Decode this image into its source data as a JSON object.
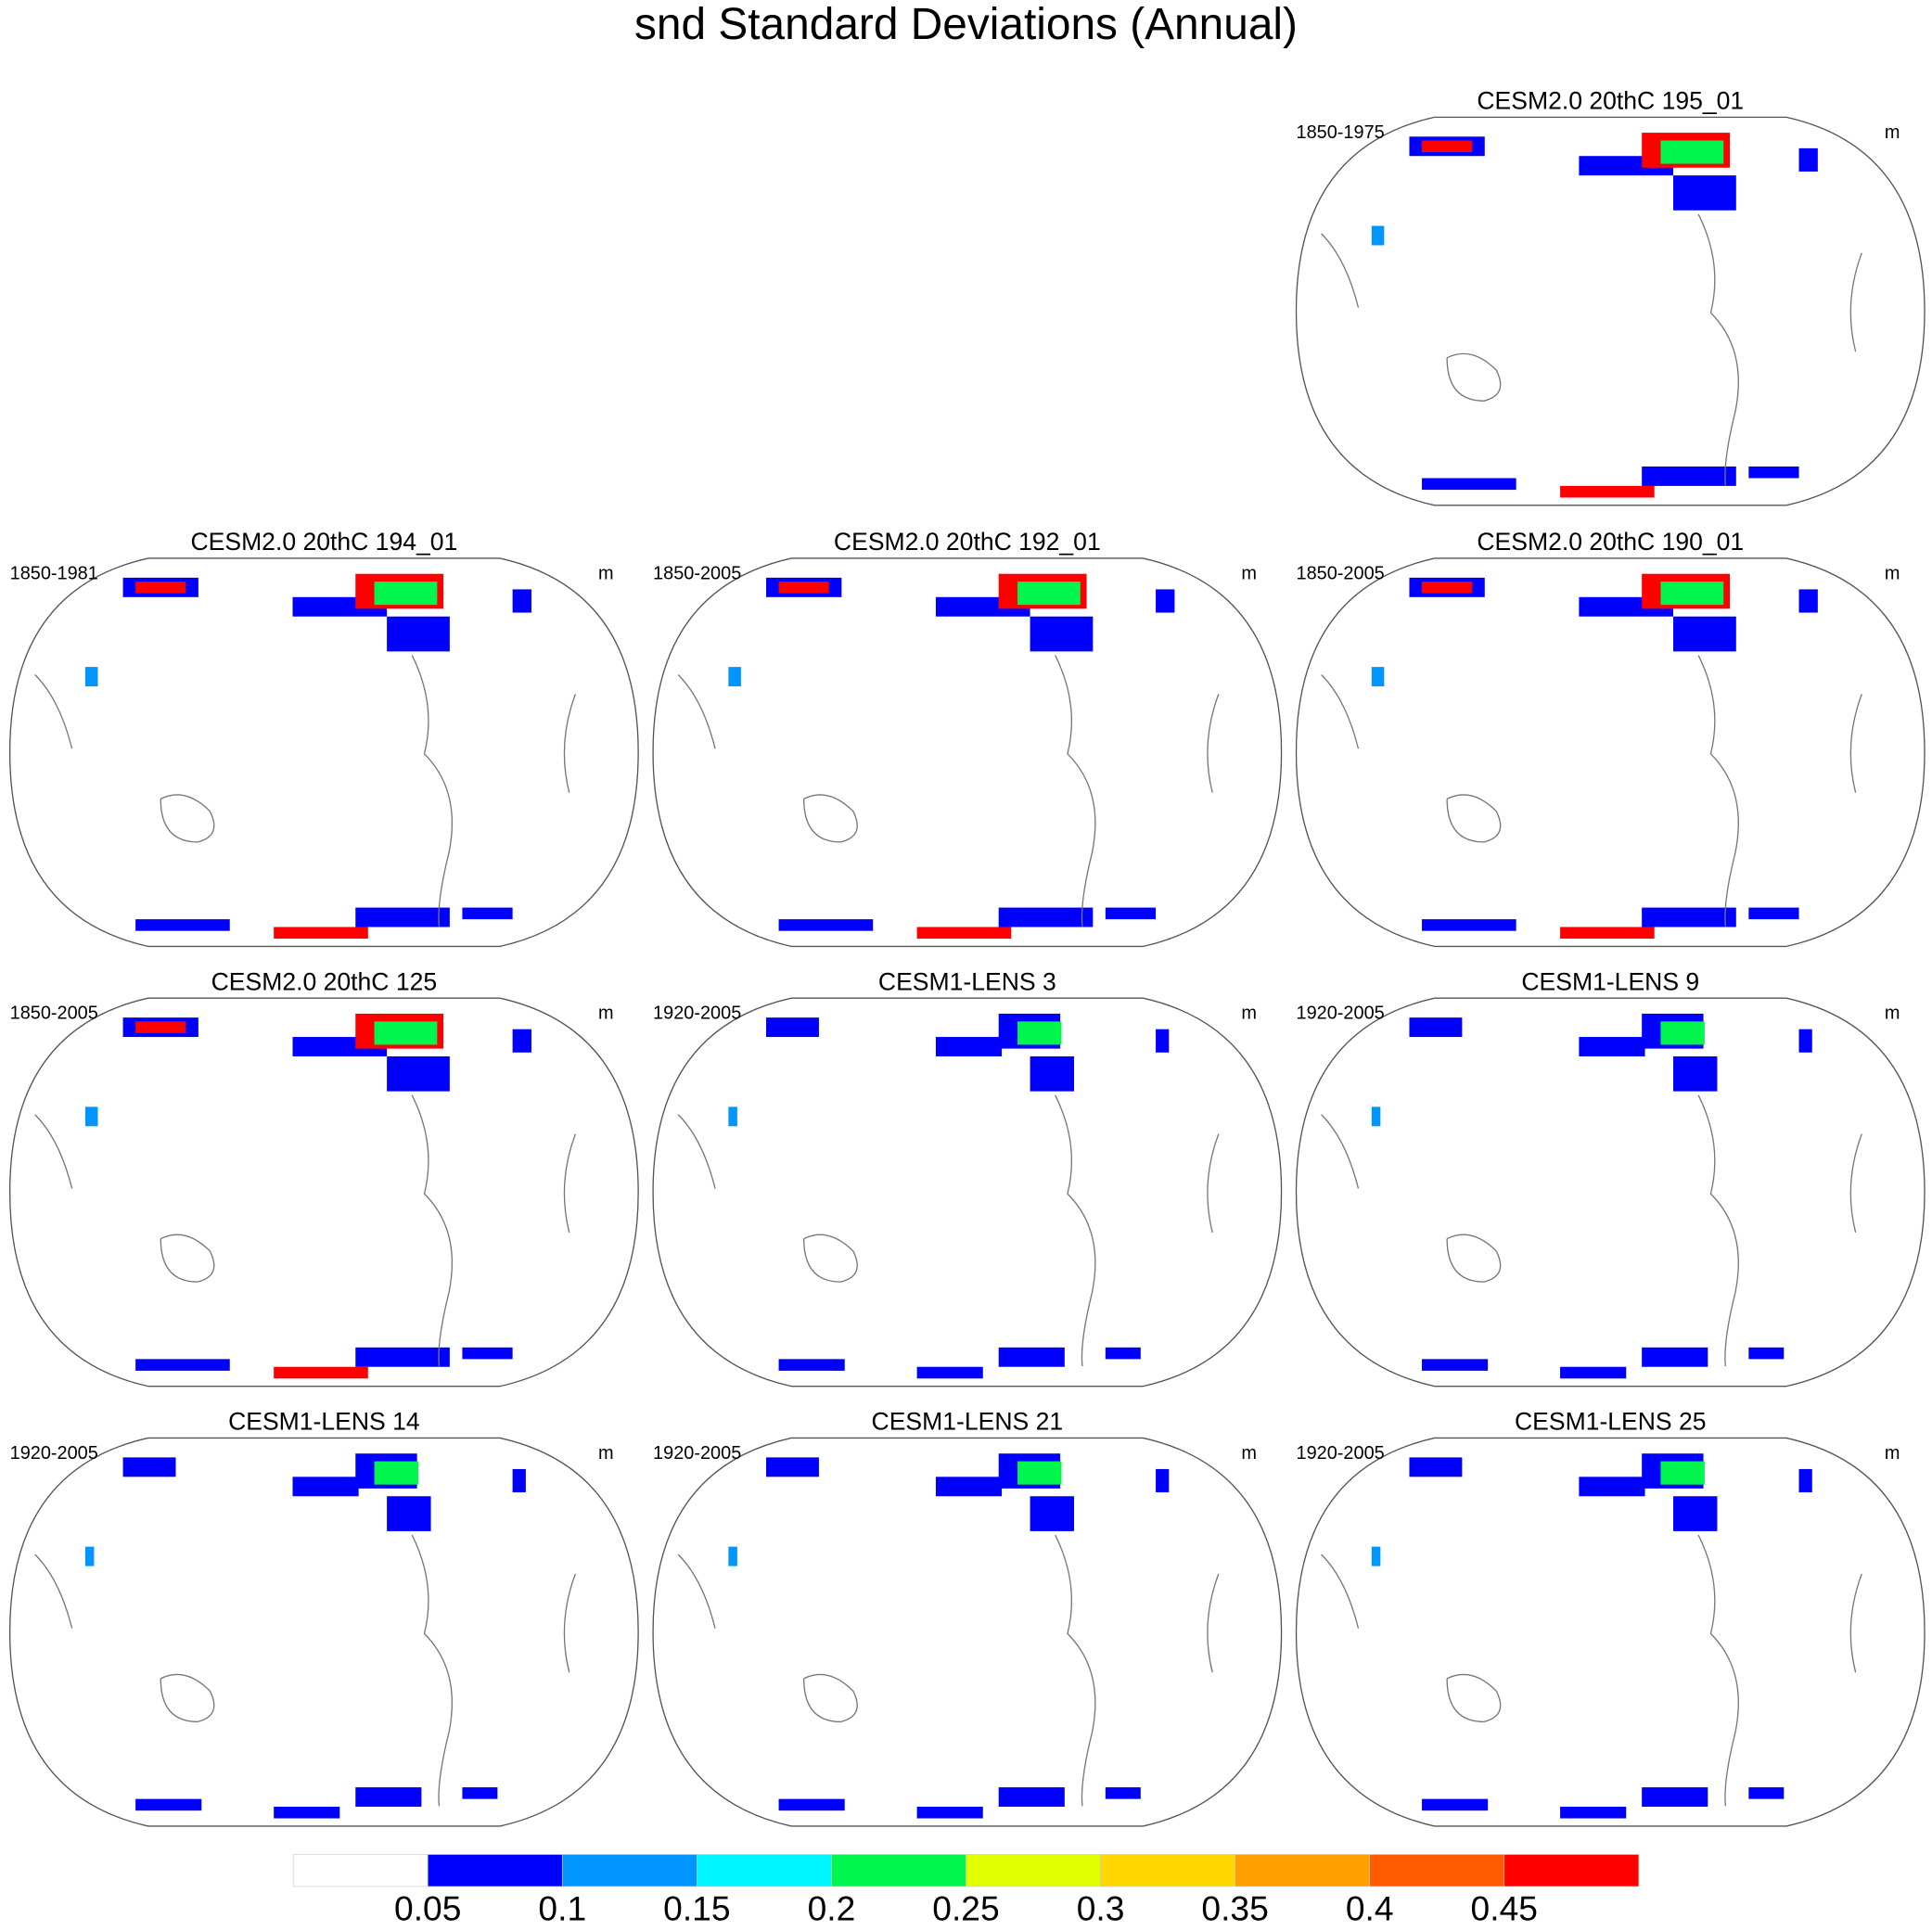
{
  "title": "snd Standard Deviations (Annual)",
  "panels": [
    {
      "title": "CESM2.0 20thC 195_01",
      "period": "1850-1975",
      "units": "m"
    },
    {
      "title": "CESM2.0 20thC 194_01",
      "period": "1850-1981",
      "units": "m"
    },
    {
      "title": "CESM2.0 20thC 192_01",
      "period": "1850-2005",
      "units": "m"
    },
    {
      "title": "CESM2.0 20thC 190_01",
      "period": "1850-2005",
      "units": "m"
    },
    {
      "title": "CESM2.0 20thC 125",
      "period": "1850-2005",
      "units": "m"
    },
    {
      "title": "CESM1-LENS 3",
      "period": "1920-2005",
      "units": "m"
    },
    {
      "title": "CESM1-LENS 9",
      "period": "1920-2005",
      "units": "m"
    },
    {
      "title": "CESM1-LENS 14",
      "period": "1920-2005",
      "units": "m"
    },
    {
      "title": "CESM1-LENS 21",
      "period": "1920-2005",
      "units": "m"
    },
    {
      "title": "CESM1-LENS 25",
      "period": "1920-2005",
      "units": "m"
    }
  ],
  "colorbar": {
    "levels": [
      0.05,
      0.1,
      0.15,
      0.2,
      0.25,
      0.3,
      0.35,
      0.4,
      0.45
    ],
    "colors": [
      "#ffffff",
      "#0000ff",
      "#0095ff",
      "#00f5ff",
      "#00f54d",
      "#e0ff00",
      "#ffd700",
      "#ff9f00",
      "#ff5a00",
      "#ff0000"
    ]
  }
}
